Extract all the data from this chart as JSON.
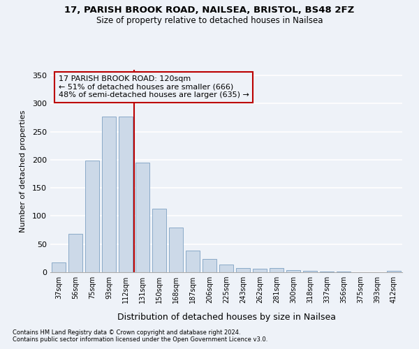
{
  "title_line1": "17, PARISH BROOK ROAD, NAILSEA, BRISTOL, BS48 2FZ",
  "title_line2": "Size of property relative to detached houses in Nailsea",
  "xlabel": "Distribution of detached houses by size in Nailsea",
  "ylabel": "Number of detached properties",
  "categories": [
    "37sqm",
    "56sqm",
    "75sqm",
    "93sqm",
    "112sqm",
    "131sqm",
    "150sqm",
    "168sqm",
    "187sqm",
    "206sqm",
    "225sqm",
    "243sqm",
    "262sqm",
    "281sqm",
    "300sqm",
    "318sqm",
    "337sqm",
    "356sqm",
    "375sqm",
    "393sqm",
    "412sqm"
  ],
  "values": [
    17,
    68,
    199,
    277,
    277,
    195,
    113,
    79,
    39,
    24,
    14,
    8,
    6,
    8,
    4,
    2,
    1,
    1,
    0,
    0,
    3
  ],
  "bar_color": "#ccd9e8",
  "bar_edge_color": "#8aaac8",
  "background_color": "#eef2f8",
  "grid_color": "#ffffff",
  "vline_x_index": 4,
  "vline_color": "#bb0000",
  "annotation_text_line1": "17 PARISH BROOK ROAD: 120sqm",
  "annotation_text_line2": "← 51% of detached houses are smaller (666)",
  "annotation_text_line3": "48% of semi-detached houses are larger (635) →",
  "box_edge_color": "#bb0000",
  "ylim": [
    0,
    360
  ],
  "yticks": [
    0,
    50,
    100,
    150,
    200,
    250,
    300,
    350
  ],
  "footnote1": "Contains HM Land Registry data © Crown copyright and database right 2024.",
  "footnote2": "Contains public sector information licensed under the Open Government Licence v3.0."
}
